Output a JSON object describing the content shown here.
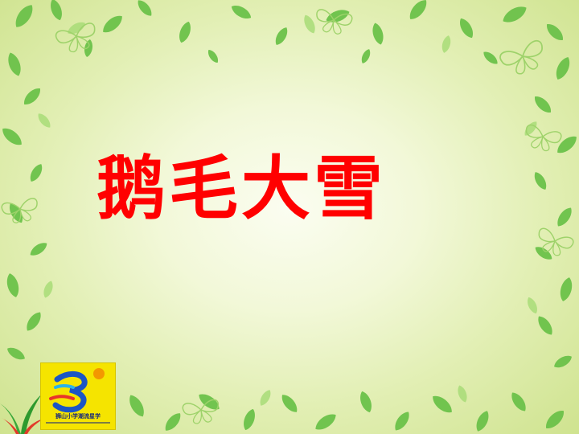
{
  "slide": {
    "title": "鹅毛大雪",
    "title_color": "#ff0000",
    "background_color": "#e8f2c4",
    "leaf_color": "#6cc24a"
  },
  "logo": {
    "name": "school-logo",
    "text": "狮山小学潮流星学",
    "background_color": "#f5e400"
  }
}
